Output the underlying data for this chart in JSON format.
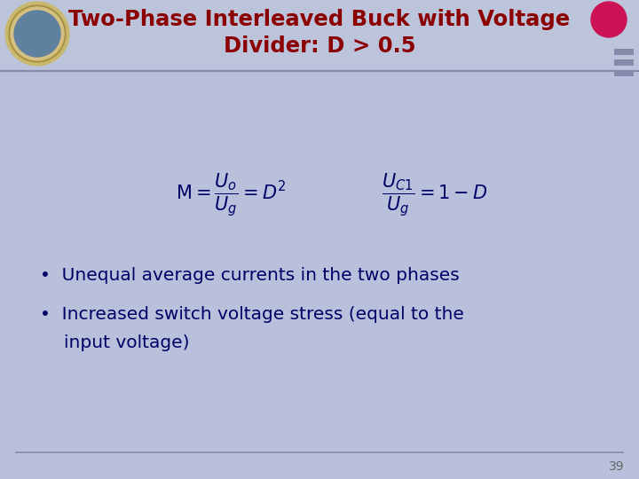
{
  "title_line1": "Two-Phase Interleaved Buck with Voltage",
  "title_line2": "Divider: D > 0.5",
  "title_color": "#8B0000",
  "slide_bg_color": "#B8C0DC",
  "header_bg_color": "#BCC4DC",
  "bullet1": "Unequal average currents in the two phases",
  "bullet2_line1": "Increased switch voltage stress (equal to the",
  "bullet2_line2": "input voltage)",
  "bullet_color": "#000066",
  "formula_color": "#000066",
  "page_number": "39",
  "line_color": "#8888AA",
  "title_fontsize": 17.5,
  "bullet_fontsize": 14.5,
  "formula_fontsize": 15,
  "red_circle_color": "#CC1155",
  "sidebar_color": "#8888AA"
}
